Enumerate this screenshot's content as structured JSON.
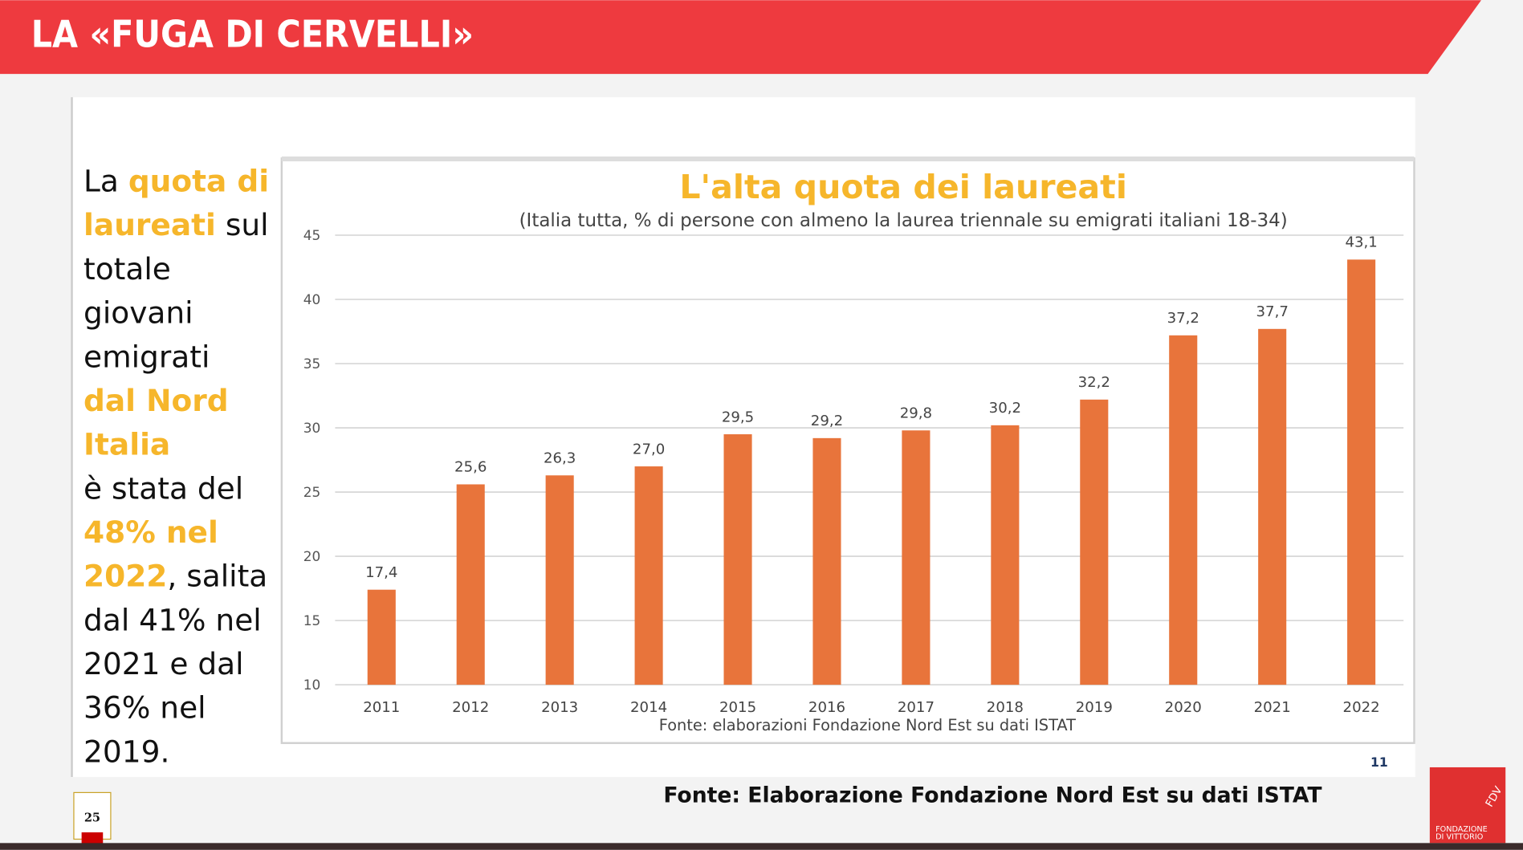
{
  "header": {
    "title": "LA «FUGA DI CERVELLI»"
  },
  "side_text": {
    "lines": [
      [
        {
          "text": "La ",
          "highlight": false
        },
        {
          "text": "quota di",
          "highlight": true
        }
      ],
      [
        {
          "text": "laureati",
          "highlight": true
        },
        {
          "text": " sul",
          "highlight": false
        }
      ],
      [
        {
          "text": "totale",
          "highlight": false
        }
      ],
      [
        {
          "text": "giovani",
          "highlight": false
        }
      ],
      [
        {
          "text": "emigrati",
          "highlight": false
        }
      ],
      [
        {
          "text": "dal Nord",
          "highlight": true
        }
      ],
      [
        {
          "text": "Italia",
          "highlight": true
        }
      ],
      [
        {
          "text": "è stata del",
          "highlight": false
        }
      ],
      [
        {
          "text": "48% nel",
          "highlight": true
        }
      ],
      [
        {
          "text": "2022",
          "highlight": true
        },
        {
          "text": ", salita",
          "highlight": false
        }
      ],
      [
        {
          "text": "dal 41% nel",
          "highlight": false
        }
      ],
      [
        {
          "text": "2021 e dal",
          "highlight": false
        }
      ],
      [
        {
          "text": "36% nel",
          "highlight": false
        }
      ],
      [
        {
          "text": "2019.",
          "highlight": false
        }
      ]
    ]
  },
  "chart_data": {
    "type": "bar",
    "title": "L'alta quota dei laureati",
    "subtitle": "(Italia tutta, % di persone con almeno la laurea triennale su emigrati italiani 18-34)",
    "categories": [
      "2011",
      "2012",
      "2013",
      "2014",
      "2015",
      "2016",
      "2017",
      "2018",
      "2019",
      "2020",
      "2021",
      "2022"
    ],
    "values": [
      17.4,
      25.6,
      26.3,
      27.0,
      29.5,
      29.2,
      29.8,
      30.2,
      32.2,
      37.2,
      37.7,
      43.1
    ],
    "value_labels": [
      "17,4",
      "25,6",
      "26,3",
      "27,0",
      "29,5",
      "29,2",
      "29,8",
      "30,2",
      "32,2",
      "37,2",
      "37,7",
      "43,1"
    ],
    "color": "#e8743b",
    "ylim": [
      10,
      45
    ],
    "yticks": [
      10,
      15,
      20,
      25,
      30,
      35,
      40,
      45
    ],
    "grid": true,
    "note": "Fonte: elaborazioni Fondazione Nord Est su dati ISTAT"
  },
  "chart_page_number": "11",
  "footer": {
    "source": "Fonte: Elaborazione Fondazione Nord Est su dati ISTAT"
  },
  "slide_number": "25",
  "logo": {
    "mark": "FDV",
    "line1": "FONDAZIONE",
    "line2": "DI VITTORIO"
  }
}
